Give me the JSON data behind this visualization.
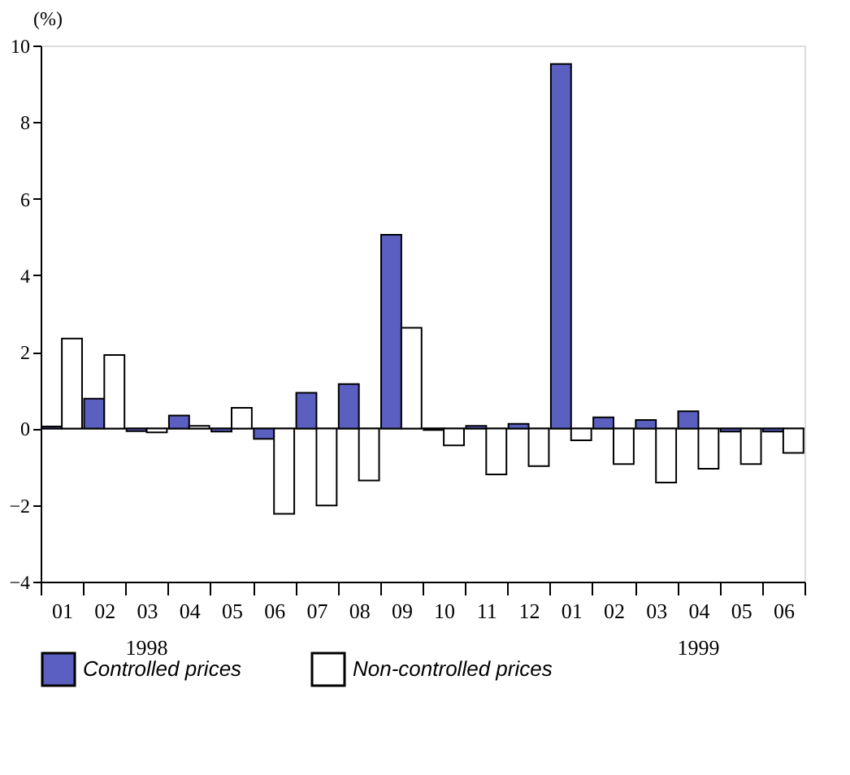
{
  "chart_data": {
    "type": "bar",
    "ylabel": "(%)",
    "categories": [
      "01",
      "02",
      "03",
      "04",
      "05",
      "06",
      "07",
      "08",
      "09",
      "10",
      "11",
      "12",
      "01",
      "02",
      "03",
      "04",
      "05",
      "06"
    ],
    "series": [
      {
        "name": "Controlled prices",
        "color": "#5b5fc0",
        "values": [
          0.05,
          0.78,
          -0.07,
          0.34,
          -0.08,
          -0.27,
          0.93,
          1.16,
          5.06,
          -0.04,
          0.07,
          0.12,
          9.52,
          0.29,
          0.22,
          0.45,
          -0.08,
          -0.08
        ]
      },
      {
        "name": "Non-controlled prices",
        "color": "#ffffff",
        "values": [
          2.35,
          1.92,
          -0.1,
          0.07,
          0.54,
          -2.23,
          -2.01,
          -1.36,
          2.63,
          -0.44,
          -1.2,
          -0.98,
          -0.31,
          -0.93,
          -1.41,
          -1.05,
          -0.93,
          -0.64
        ]
      }
    ],
    "ylim": [
      -4,
      10
    ],
    "yticks": [
      -4,
      -2,
      0,
      2,
      4,
      6,
      8,
      10
    ],
    "grid": false,
    "legend": "bottom",
    "ref_lines": [
      {
        "axis": "y",
        "value": 0
      }
    ],
    "annotations": [
      "1998",
      "1999"
    ]
  }
}
